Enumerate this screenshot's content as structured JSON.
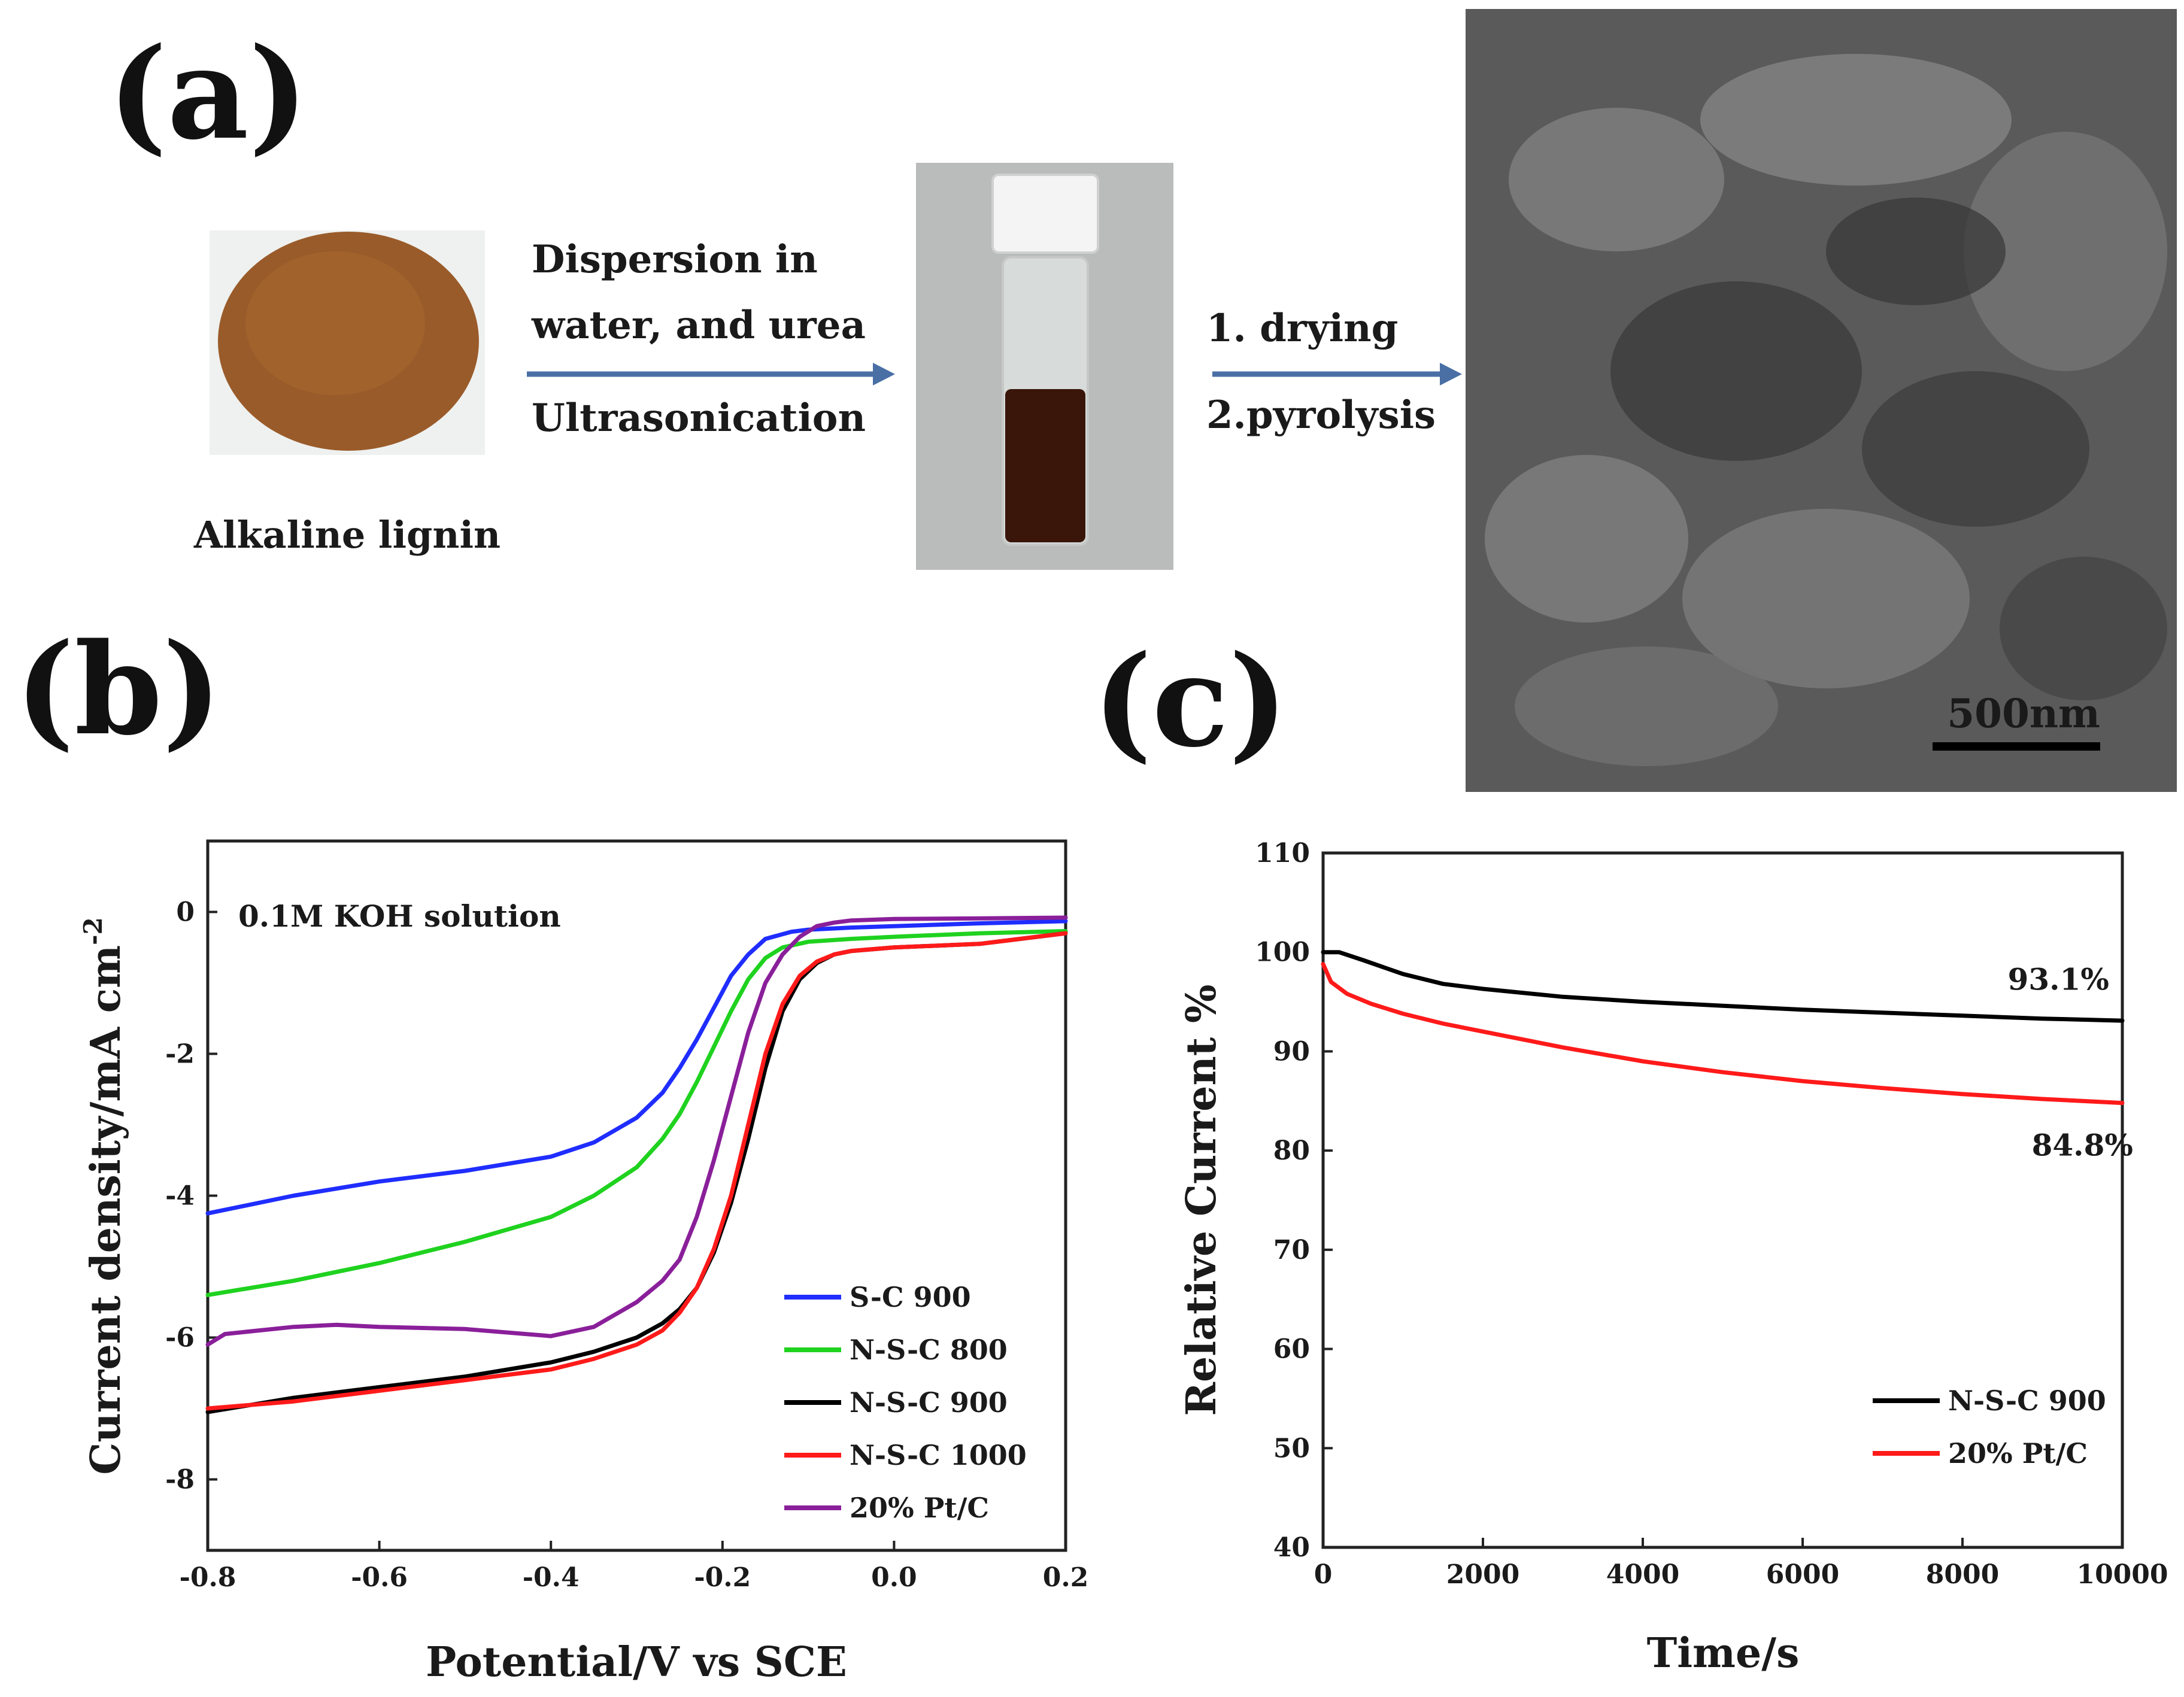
{
  "panel_labels": {
    "a": "(a)",
    "b": "(b)",
    "c": "(c)"
  },
  "scheme": {
    "start_label": "Alkaline lignin",
    "step1_lines": [
      "Dispersion in",
      "water, and urea",
      "Ultrasonication"
    ],
    "step2_lines": [
      "1. drying",
      "2.pyrolysis"
    ],
    "scale_bar_label": "500nm"
  },
  "colors": {
    "arrow": "#4a6fa5",
    "lignin": "#9a5b2a",
    "solution": "#3a160a",
    "sem_bg": "#5a5a5a",
    "S-C 900": "#1f2dff",
    "N-S-C 800": "#1fd21f",
    "N-S-C 900": "#000000",
    "N-S-C 1000": "#ff1a1a",
    "20% Pt/C (b)": "#8a1f9a",
    "20% Pt/C (c)": "#ff1a1a"
  },
  "chart_data": [
    {
      "id": "b",
      "type": "line",
      "title": "",
      "annotation": "0.1M KOH solution",
      "xlabel": "Potential/V vs SCE",
      "ylabel": "Current density/mA cm",
      "ylabel_sup": "-2",
      "xlim": [
        -0.8,
        0.2
      ],
      "ylim": [
        -9,
        1
      ],
      "xticks": [
        -0.8,
        -0.6,
        -0.4,
        -0.2,
        0.0,
        0.2
      ],
      "xtick_labels": [
        "-0.8",
        "-0.6",
        "-0.4",
        "-0.2",
        "0.0",
        "0.2"
      ],
      "yticks": [
        0,
        -2,
        -4,
        -6,
        -8
      ],
      "ytick_labels": [
        "0",
        "-2",
        "-4",
        "-6",
        "-8"
      ],
      "legend_position": "lower-right",
      "series": [
        {
          "name": "S-C 900",
          "x": [
            -0.8,
            -0.7,
            -0.6,
            -0.5,
            -0.4,
            -0.35,
            -0.3,
            -0.27,
            -0.25,
            -0.23,
            -0.21,
            -0.19,
            -0.17,
            -0.15,
            -0.12,
            -0.1,
            -0.05,
            0.0,
            0.1,
            0.2
          ],
          "y": [
            -4.25,
            -4.0,
            -3.8,
            -3.65,
            -3.45,
            -3.25,
            -2.9,
            -2.55,
            -2.2,
            -1.8,
            -1.35,
            -0.9,
            -0.6,
            -0.38,
            -0.28,
            -0.25,
            -0.22,
            -0.2,
            -0.16,
            -0.13
          ]
        },
        {
          "name": "N-S-C 800",
          "x": [
            -0.8,
            -0.7,
            -0.6,
            -0.5,
            -0.4,
            -0.35,
            -0.3,
            -0.27,
            -0.25,
            -0.23,
            -0.21,
            -0.19,
            -0.17,
            -0.15,
            -0.13,
            -0.1,
            -0.05,
            0.0,
            0.1,
            0.2
          ],
          "y": [
            -5.4,
            -5.2,
            -4.95,
            -4.65,
            -4.3,
            -4.0,
            -3.6,
            -3.2,
            -2.85,
            -2.4,
            -1.9,
            -1.4,
            -0.95,
            -0.65,
            -0.5,
            -0.42,
            -0.38,
            -0.35,
            -0.3,
            -0.27
          ]
        },
        {
          "name": "N-S-C 900",
          "x": [
            -0.8,
            -0.7,
            -0.6,
            -0.5,
            -0.4,
            -0.35,
            -0.3,
            -0.27,
            -0.25,
            -0.23,
            -0.21,
            -0.19,
            -0.17,
            -0.15,
            -0.13,
            -0.11,
            -0.09,
            -0.07,
            -0.05,
            0.0,
            0.1,
            0.2
          ],
          "y": [
            -7.05,
            -6.85,
            -6.7,
            -6.55,
            -6.35,
            -6.2,
            -6.0,
            -5.8,
            -5.6,
            -5.3,
            -4.8,
            -4.1,
            -3.2,
            -2.2,
            -1.4,
            -0.95,
            -0.72,
            -0.6,
            -0.55,
            -0.5,
            -0.45,
            -0.3
          ]
        },
        {
          "name": "N-S-C 1000",
          "x": [
            -0.8,
            -0.7,
            -0.6,
            -0.5,
            -0.4,
            -0.35,
            -0.3,
            -0.27,
            -0.25,
            -0.23,
            -0.21,
            -0.19,
            -0.17,
            -0.15,
            -0.13,
            -0.11,
            -0.09,
            -0.07,
            -0.05,
            0.0,
            0.1,
            0.2
          ],
          "y": [
            -7.0,
            -6.9,
            -6.75,
            -6.6,
            -6.45,
            -6.3,
            -6.1,
            -5.9,
            -5.65,
            -5.3,
            -4.75,
            -4.0,
            -3.0,
            -2.0,
            -1.3,
            -0.9,
            -0.7,
            -0.6,
            -0.55,
            -0.5,
            -0.45,
            -0.3
          ]
        },
        {
          "name": "20% Pt/C",
          "x": [
            -0.8,
            -0.78,
            -0.7,
            -0.65,
            -0.6,
            -0.5,
            -0.4,
            -0.35,
            -0.3,
            -0.27,
            -0.25,
            -0.23,
            -0.21,
            -0.19,
            -0.17,
            -0.15,
            -0.13,
            -0.11,
            -0.09,
            -0.07,
            -0.05,
            0.0,
            0.1,
            0.2
          ],
          "y": [
            -6.1,
            -5.95,
            -5.85,
            -5.82,
            -5.85,
            -5.88,
            -5.98,
            -5.85,
            -5.5,
            -5.2,
            -4.9,
            -4.3,
            -3.5,
            -2.6,
            -1.7,
            -1.0,
            -0.6,
            -0.35,
            -0.2,
            -0.15,
            -0.12,
            -0.1,
            -0.09,
            -0.08
          ]
        }
      ]
    },
    {
      "id": "c",
      "type": "line",
      "title": "",
      "xlabel": "Time/s",
      "ylabel": "Relative Current %",
      "xlim": [
        0,
        10000
      ],
      "ylim": [
        40,
        110
      ],
      "xticks": [
        0,
        2000,
        4000,
        6000,
        8000,
        10000
      ],
      "xtick_labels": [
        "0",
        "2000",
        "4000",
        "6000",
        "8000",
        "10000"
      ],
      "yticks": [
        40,
        50,
        60,
        70,
        80,
        90,
        100,
        110
      ],
      "ytick_labels": [
        "40",
        "50",
        "60",
        "70",
        "80",
        "90",
        "100",
        "110"
      ],
      "legend_position": "lower-right",
      "annotations": [
        {
          "text": "93.1%",
          "x": 9200,
          "y": 96.2
        },
        {
          "text": "84.8%",
          "x": 9500,
          "y": 79.5
        }
      ],
      "series": [
        {
          "name": "N-S-C 900",
          "x": [
            0,
            200,
            500,
            1000,
            1500,
            2000,
            3000,
            4000,
            5000,
            6000,
            7000,
            8000,
            9000,
            10000
          ],
          "y": [
            100,
            100,
            99.2,
            97.8,
            96.8,
            96.3,
            95.5,
            95.0,
            94.6,
            94.2,
            93.9,
            93.6,
            93.3,
            93.1
          ]
        },
        {
          "name": "20% Pt/C",
          "x": [
            0,
            100,
            300,
            600,
            1000,
            1500,
            2000,
            3000,
            4000,
            5000,
            6000,
            7000,
            8000,
            9000,
            10000
          ],
          "y": [
            98.8,
            97.0,
            95.8,
            94.8,
            93.8,
            92.8,
            92.0,
            90.4,
            89.0,
            87.9,
            87.0,
            86.3,
            85.7,
            85.2,
            84.8
          ]
        }
      ]
    }
  ]
}
